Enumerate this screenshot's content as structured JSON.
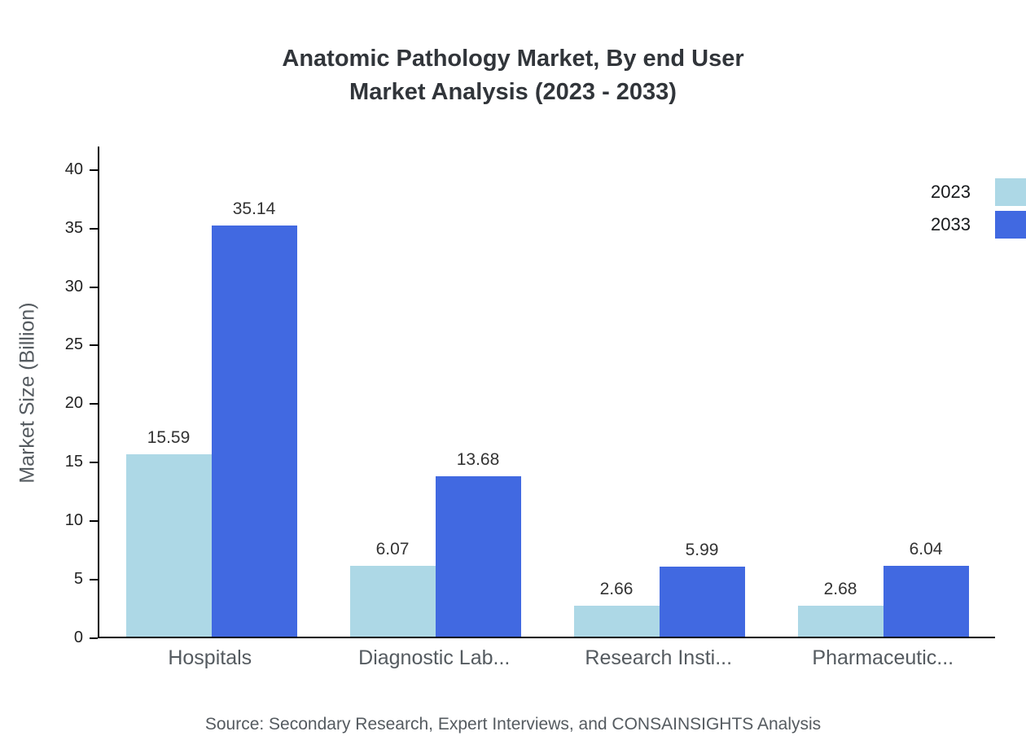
{
  "chart_data": {
    "type": "bar",
    "title_line1": "Anatomic Pathology Market, By end User",
    "title_line2": "Market Analysis (2023 - 2033)",
    "ylabel": "Market Size (Billion)",
    "categories": [
      "Hospitals",
      "Diagnostic Lab...",
      "Research Insti...",
      "Pharmaceutic..."
    ],
    "series": [
      {
        "name": "2023",
        "color": "#ADD8E6",
        "values": [
          15.59,
          6.07,
          2.66,
          2.68
        ]
      },
      {
        "name": "2033",
        "color": "#4169E1",
        "values": [
          35.14,
          13.68,
          5.99,
          6.04
        ]
      }
    ],
    "y_ticks": [
      0,
      5,
      10,
      15,
      20,
      25,
      30,
      35,
      40
    ],
    "ylim": [
      0,
      42
    ],
    "grid": false,
    "legend_position": "top-right",
    "source": "Source: Secondary Research, Expert Interviews, and CONSAINSIGHTS Analysis"
  }
}
